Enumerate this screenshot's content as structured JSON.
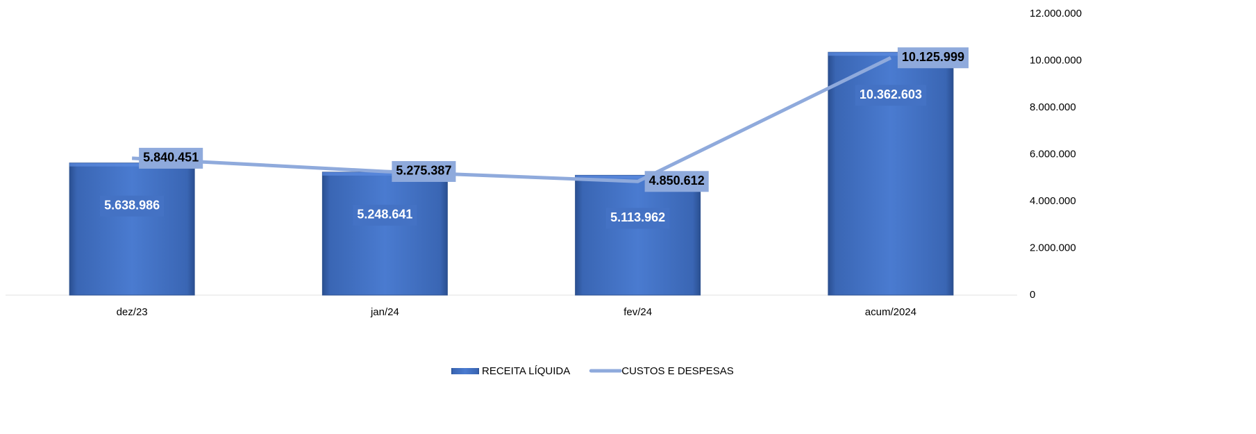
{
  "chart_data": {
    "type": "bar",
    "categories": [
      "dez/23",
      "jan/24",
      "fev/24",
      "acum/2024"
    ],
    "series": [
      {
        "name": "RECEITA LÍQUIDA",
        "type": "bar",
        "color": "#4472c4",
        "values": [
          5638986,
          5248641,
          5113962,
          10362603
        ],
        "value_labels": [
          "5.638.986",
          "5.248.641",
          "5.113.962",
          "10.362.603"
        ]
      },
      {
        "name": "CUSTOS E DESPESAS",
        "type": "line",
        "color": "#8faadc",
        "values": [
          5840451,
          5275387,
          4850612,
          10125999
        ],
        "value_labels": [
          "5.840.451",
          "5.275.387",
          "4.850.612",
          "10.125.999"
        ]
      }
    ],
    "ylim": [
      0,
      12000000
    ],
    "yticks": [
      0,
      {
        "value": 2000000,
        "label": "2.000.000"
      },
      {
        "value": 4000000,
        "label": "4.000.000"
      },
      {
        "value": 6000000,
        "label": "6.000.000"
      },
      {
        "value": 8000000,
        "label": "8.000.000"
      },
      {
        "value": 10000000,
        "label": "10.000.000"
      },
      {
        "value": 12000000,
        "label": "12.000.000"
      }
    ],
    "legend": "bottom"
  }
}
